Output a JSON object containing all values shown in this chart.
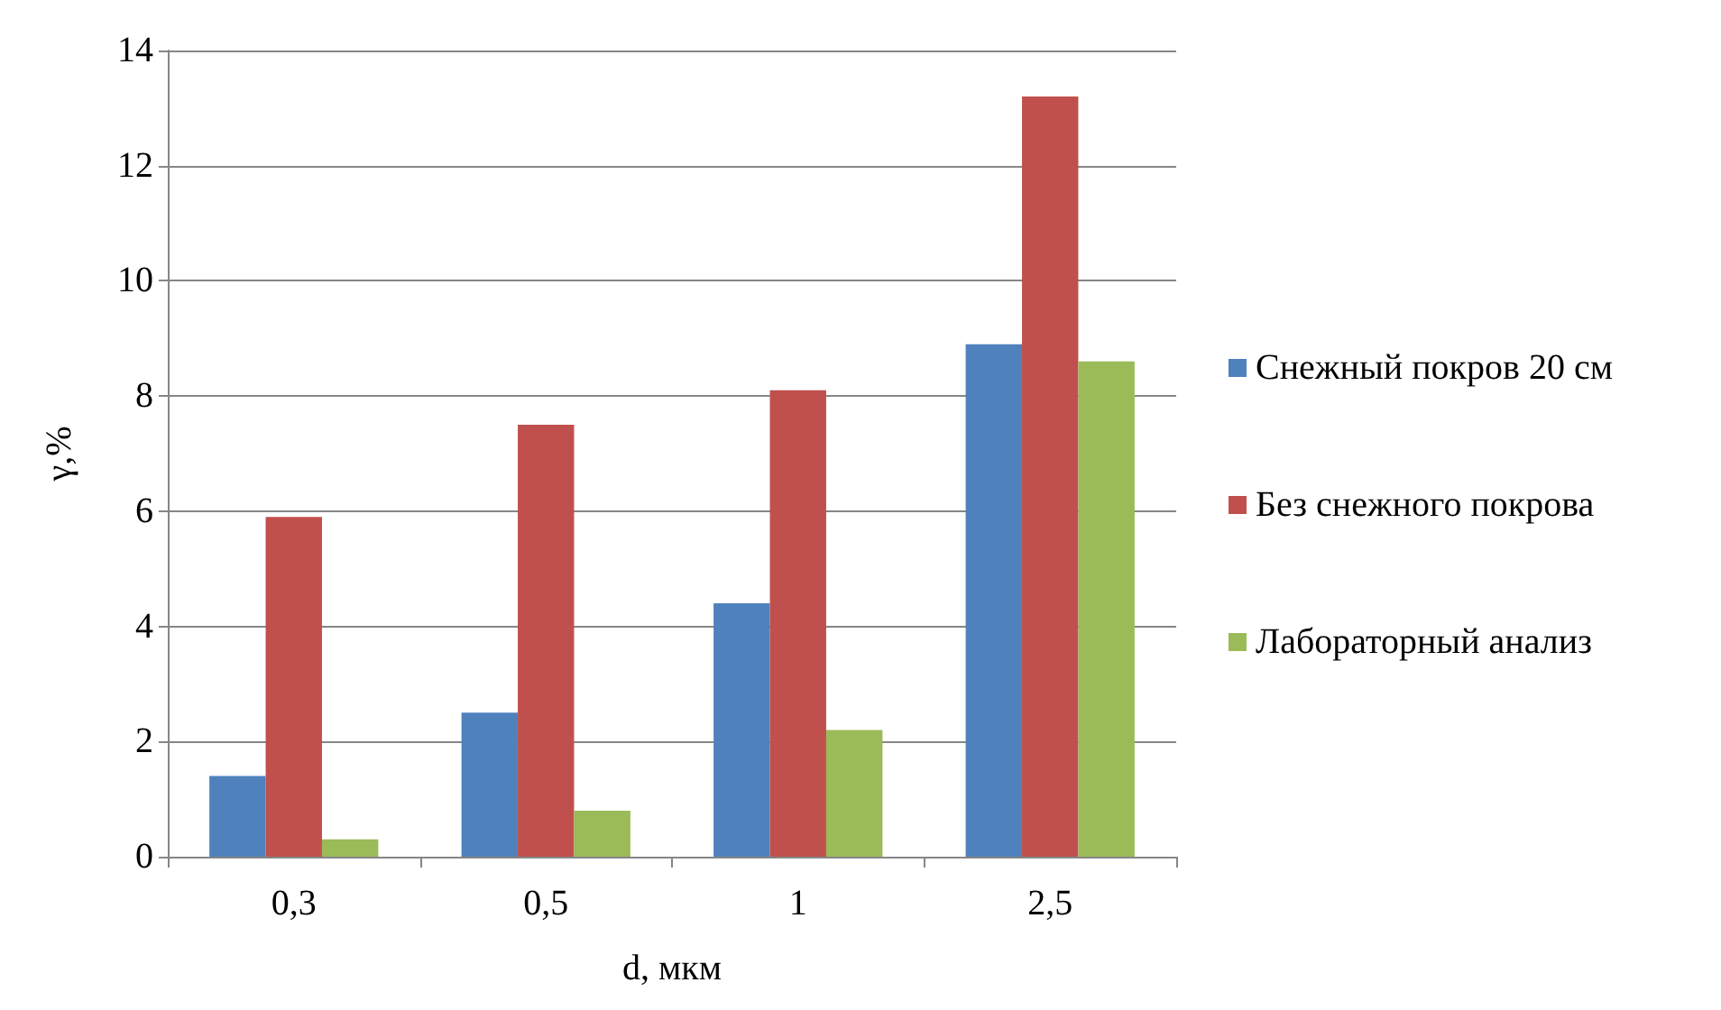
{
  "chart_data": {
    "type": "bar",
    "xlabel": "d, мкм",
    "ylabel": "γ,%",
    "categories": [
      "0,3",
      "0,5",
      "1",
      "2,5"
    ],
    "series": [
      {
        "name": "Снежный покров 20 см",
        "color": "#4f81bd",
        "values": [
          1.4,
          2.5,
          4.4,
          8.9
        ]
      },
      {
        "name": "Без снежного покрова",
        "color": "#c0504d",
        "values": [
          5.9,
          7.5,
          8.1,
          13.2
        ]
      },
      {
        "name": "Лабораторный анализ",
        "color": "#9bbb59",
        "values": [
          0.3,
          0.8,
          2.2,
          8.6
        ]
      }
    ],
    "ylim": [
      0,
      14
    ],
    "yticks": [
      0,
      2,
      4,
      6,
      8,
      10,
      12,
      14
    ],
    "grid": "y",
    "legend": "right"
  }
}
